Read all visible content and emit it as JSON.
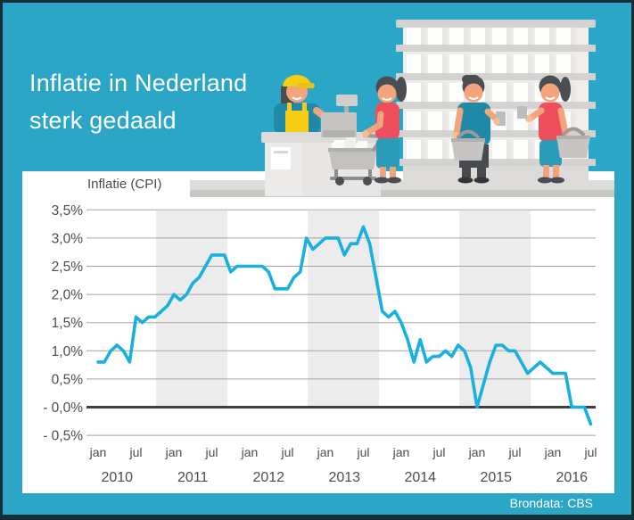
{
  "header": {
    "title_line1": "Inflatie in Nederland",
    "title_line2": "sterk gedaald"
  },
  "chart": {
    "legend": "Inflatie (CPI)"
  },
  "footer": {
    "source": "Brondata: CBS"
  },
  "palette": {
    "background_teal": "#2ba6c7",
    "frame_dark": "#142e38",
    "card_white": "#ffffff",
    "line_teal": "#18b1dd",
    "grid_gray": "#a3a3a3",
    "zero_line": "#3f3f3f",
    "year_band": "#ececec",
    "axis_text": "#4d4d4d",
    "title_text": "#ffffff"
  },
  "chart_data": {
    "type": "line",
    "title": "Inflatie (CPI)",
    "unit": "%",
    "frequency": "monthly",
    "x_start": "jan 2010",
    "x_end": "jul 2016",
    "years": [
      "2010",
      "2011",
      "2012",
      "2013",
      "2014",
      "2015",
      "2016"
    ],
    "month_tick_labels": [
      "jan",
      "jul"
    ],
    "y_tick_labels": [
      "3,5%",
      "3,0%",
      "2,5%",
      "2,0%",
      "1,5%",
      "1,0%",
      "0,5%",
      "- 0,0%",
      "- 0,5%"
    ],
    "ylim": [
      -0.5,
      3.5
    ],
    "grid": true,
    "shaded_year_bands": [
      "2011",
      "2013",
      "2015"
    ],
    "series": [
      {
        "name": "Inflatie (CPI)",
        "values": [
          0.8,
          0.8,
          1.0,
          1.1,
          1.0,
          0.8,
          1.6,
          1.5,
          1.6,
          1.6,
          1.7,
          1.8,
          2.0,
          1.9,
          2.0,
          2.2,
          2.3,
          2.5,
          2.7,
          2.7,
          2.7,
          2.4,
          2.5,
          2.5,
          2.5,
          2.5,
          2.5,
          2.4,
          2.1,
          2.1,
          2.1,
          2.3,
          2.4,
          3.0,
          2.8,
          2.9,
          3.0,
          3.0,
          3.0,
          2.7,
          2.9,
          2.9,
          3.2,
          2.9,
          2.3,
          1.7,
          1.6,
          1.7,
          1.5,
          1.2,
          0.8,
          1.2,
          0.8,
          0.9,
          0.9,
          1.0,
          0.9,
          1.1,
          1.0,
          0.7,
          0.0,
          0.4,
          0.8,
          1.1,
          1.1,
          1.0,
          1.0,
          0.8,
          0.6,
          0.7,
          0.8,
          0.7,
          0.6,
          0.6,
          0.6,
          0.0,
          0.0,
          0.0,
          -0.3
        ]
      }
    ]
  }
}
